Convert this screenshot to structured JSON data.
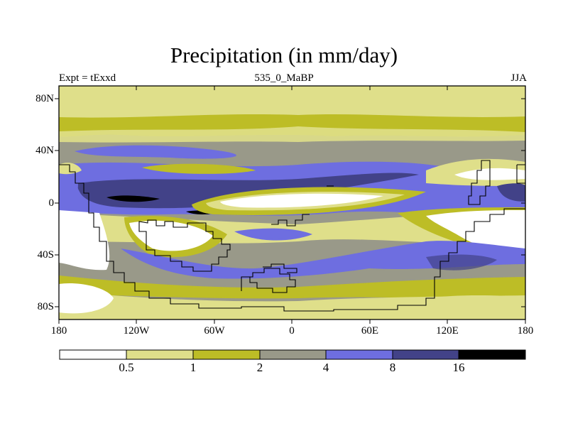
{
  "title": "Precipitation (in mm/day)",
  "subtitle_left": "Expt = tExxd",
  "subtitle_center": "535_0_MaBP",
  "subtitle_right": "JJA",
  "lat_labels": [
    "80N",
    "40N",
    "0",
    "40S",
    "80S"
  ],
  "lon_labels": [
    "180",
    "120W",
    "60W",
    "0",
    "60E",
    "120E",
    "180"
  ],
  "colorbar": {
    "boundaries": [
      "0.5",
      "1",
      "2",
      "4",
      "8",
      "16"
    ],
    "colors": [
      "#ffffff",
      "#dfdf8a",
      "#bdbd26",
      "#999989",
      "#6e6ee0",
      "#424288",
      "#000000"
    ]
  },
  "chart_data": {
    "type": "map",
    "title": "Precipitation (in mm/day)",
    "subtitle_left": "Expt = tExxd",
    "subtitle_center": "535_0_MaBP",
    "subtitle_right": "JJA",
    "units": "mm/day",
    "lon_range": [
      -180,
      180
    ],
    "lat_range": [
      -90,
      90
    ],
    "contour_levels": [
      0.5,
      1,
      2,
      4,
      8,
      16
    ]
  }
}
